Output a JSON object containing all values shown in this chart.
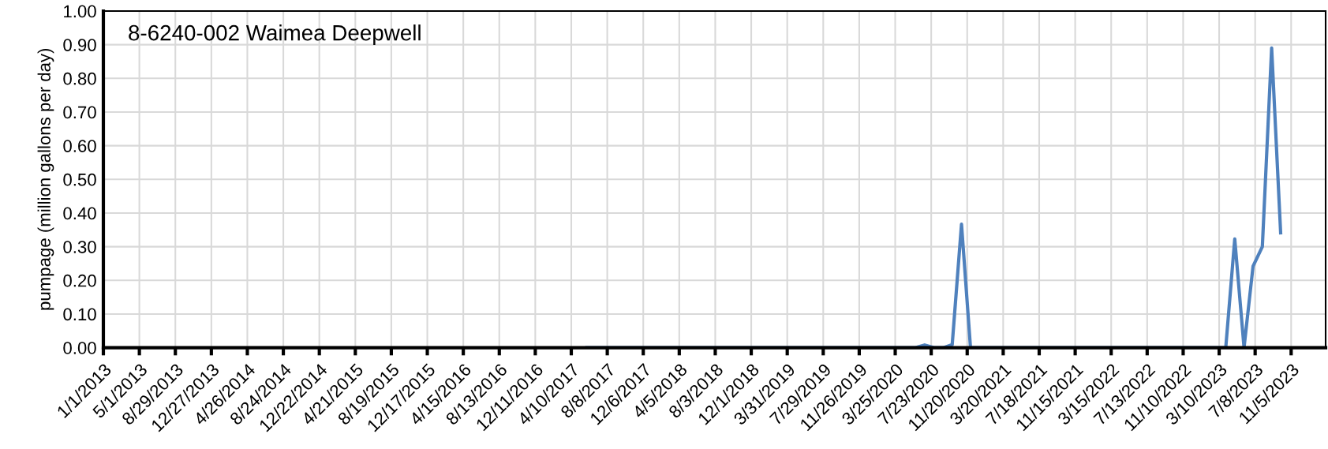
{
  "chart_data": {
    "type": "line",
    "title": "8-6240-002 Waimea Deepwell",
    "ylabel": "pumpage (million gallons per day)",
    "x": [
      "2017-06-01",
      "2020-06-01",
      "2020-07-01",
      "2020-08-01",
      "2020-09-01",
      "2020-10-01",
      "2020-11-01",
      "2020-12-01",
      "2023-04-01",
      "2023-05-01",
      "2023-06-01",
      "2023-07-01",
      "2023-08-01",
      "2023-09-01",
      "2023-10-01"
    ],
    "series": [
      {
        "color": "#4f81bd",
        "values": [
          0,
          0,
          0.008,
          0,
          0,
          0.009,
          0.367,
          0,
          0,
          0.323,
          0,
          0.242,
          0.3,
          0.89,
          0.341
        ]
      }
    ],
    "xlim": [
      "2013-01-01",
      "2024-02-28"
    ],
    "xticks": [
      {
        "value": "2013-01-01",
        "label": "1/1/2013"
      },
      {
        "value": "2013-05-01",
        "label": "5/1/2013"
      },
      {
        "value": "2013-08-29",
        "label": "8/29/2013"
      },
      {
        "value": "2013-12-27",
        "label": "12/27/2013"
      },
      {
        "value": "2014-04-26",
        "label": "4/26/2014"
      },
      {
        "value": "2014-08-24",
        "label": "8/24/2014"
      },
      {
        "value": "2014-12-22",
        "label": "12/22/2014"
      },
      {
        "value": "2015-04-21",
        "label": "4/21/2015"
      },
      {
        "value": "2015-08-19",
        "label": "8/19/2015"
      },
      {
        "value": "2015-12-17",
        "label": "12/17/2015"
      },
      {
        "value": "2016-04-15",
        "label": "4/15/2016"
      },
      {
        "value": "2016-08-13",
        "label": "8/13/2016"
      },
      {
        "value": "2016-12-11",
        "label": "12/11/2016"
      },
      {
        "value": "2017-04-10",
        "label": "4/10/2017"
      },
      {
        "value": "2017-08-08",
        "label": "8/8/2017"
      },
      {
        "value": "2017-12-06",
        "label": "12/6/2017"
      },
      {
        "value": "2018-04-05",
        "label": "4/5/2018"
      },
      {
        "value": "2018-08-03",
        "label": "8/3/2018"
      },
      {
        "value": "2018-12-01",
        "label": "12/1/2018"
      },
      {
        "value": "2019-03-31",
        "label": "3/31/2019"
      },
      {
        "value": "2019-07-29",
        "label": "7/29/2019"
      },
      {
        "value": "2019-11-26",
        "label": "11/26/2019"
      },
      {
        "value": "2020-03-25",
        "label": "3/25/2020"
      },
      {
        "value": "2020-07-23",
        "label": "7/23/2020"
      },
      {
        "value": "2020-11-20",
        "label": "11/20/2020"
      },
      {
        "value": "2021-03-20",
        "label": "3/20/2021"
      },
      {
        "value": "2021-07-18",
        "label": "7/18/2021"
      },
      {
        "value": "2021-11-15",
        "label": "11/15/2021"
      },
      {
        "value": "2022-03-15",
        "label": "3/15/2022"
      },
      {
        "value": "2022-07-13",
        "label": "7/13/2022"
      },
      {
        "value": "2022-11-10",
        "label": "11/10/2022"
      },
      {
        "value": "2023-03-10",
        "label": "3/10/2023"
      },
      {
        "value": "2023-07-08",
        "label": "7/8/2023"
      },
      {
        "value": "2023-11-05",
        "label": "11/5/2023"
      }
    ],
    "ylim": [
      0,
      1
    ],
    "yticks": [
      {
        "value": 0,
        "label": "0.00"
      },
      {
        "value": 0.1,
        "label": "0.10"
      },
      {
        "value": 0.2,
        "label": "0.20"
      },
      {
        "value": 0.3,
        "label": "0.30"
      },
      {
        "value": 0.4,
        "label": "0.40"
      },
      {
        "value": 0.5,
        "label": "0.50"
      },
      {
        "value": 0.6,
        "label": "0.60"
      },
      {
        "value": 0.7,
        "label": "0.70"
      },
      {
        "value": 0.8,
        "label": "0.80"
      },
      {
        "value": 0.9,
        "label": "0.90"
      },
      {
        "value": 1,
        "label": "1.00"
      }
    ],
    "grid": true
  }
}
